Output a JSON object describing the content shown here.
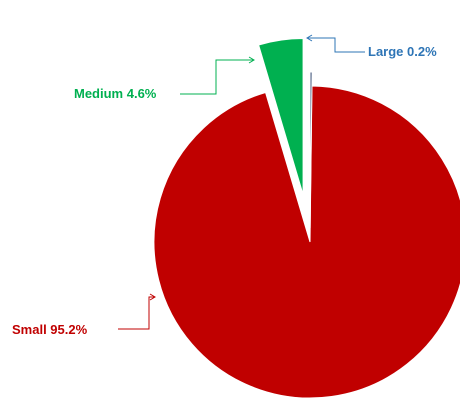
{
  "chart_data": {
    "type": "pie",
    "title": "",
    "categories": [
      "Small",
      "Medium",
      "Large"
    ],
    "values": [
      95.2,
      4.6,
      0.2
    ],
    "percent_labels": [
      "95.2%",
      "4.6%",
      "0.2%"
    ],
    "colors": [
      "#C00000",
      "#00B050",
      "#203864"
    ],
    "label_colors": [
      "#C00000",
      "#00B050",
      "#2E75B6"
    ],
    "legend": "none",
    "exploded": true
  }
}
